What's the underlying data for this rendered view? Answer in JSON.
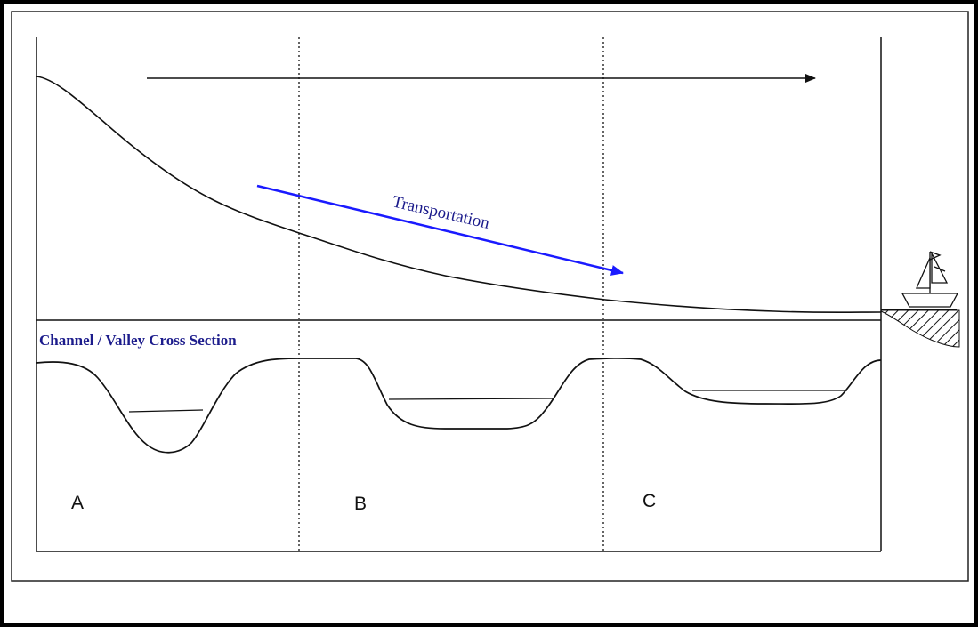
{
  "diagram": {
    "transport_label": "Transportation",
    "cross_section_heading": "Channel / Valley Cross Section",
    "zones": [
      {
        "label": "A"
      },
      {
        "label": "B"
      },
      {
        "label": "C"
      }
    ],
    "colors": {
      "line": "#111111",
      "transport_arrow": "#1a1aff",
      "heading_text": "#1c1c8c"
    },
    "icons": [
      "arrow-right-icon",
      "sailboat-icon"
    ]
  }
}
